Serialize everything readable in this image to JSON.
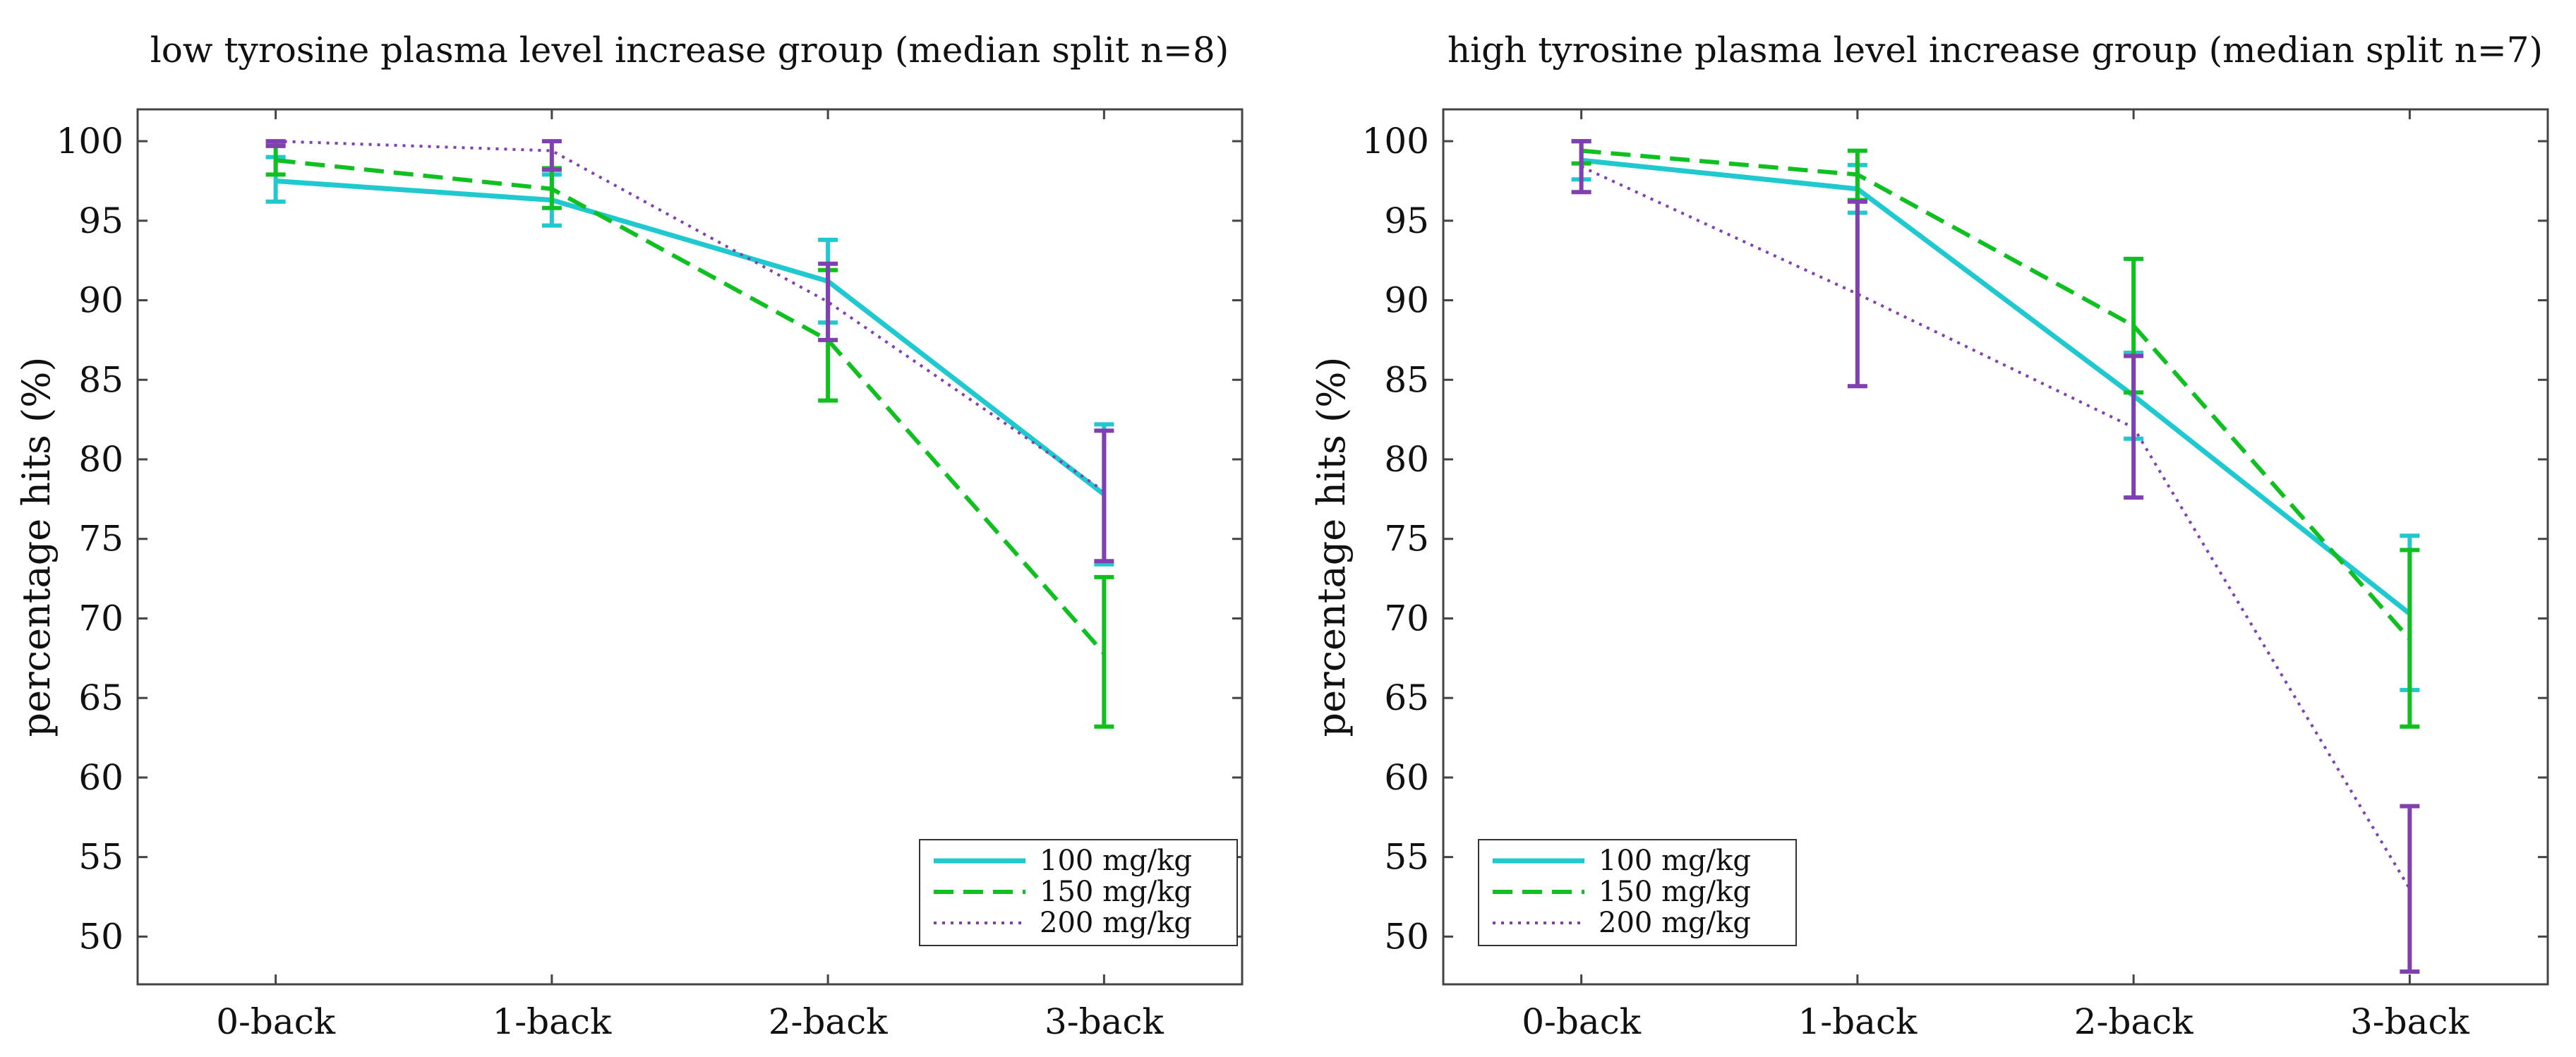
{
  "colors": {
    "100 mg/kg": "#20c8d0",
    "150 mg/kg": "#10c020",
    "200 mg/kg": "#8040b0",
    "axis": "#444444",
    "text": "#111111"
  },
  "chart_data": [
    {
      "type": "line",
      "title": "low tyrosine plasma level increase group (median split n=8)",
      "xlabel": "",
      "ylabel": "percentage hits (%)",
      "categories": [
        "0-back",
        "1-back",
        "2-back",
        "3-back"
      ],
      "ylim": [
        47,
        102
      ],
      "yticks": [
        50,
        55,
        60,
        65,
        70,
        75,
        80,
        85,
        90,
        95,
        100
      ],
      "legend_position": "bottom-right",
      "series": [
        {
          "name": "100 mg/kg",
          "style": "solid",
          "color_key": "100 mg/kg",
          "values": [
            97.5,
            96.3,
            91.2,
            77.8
          ],
          "error_low": [
            96.2,
            94.7,
            88.6,
            73.4
          ],
          "error_high": [
            99.0,
            97.9,
            93.8,
            82.2
          ]
        },
        {
          "name": "150 mg/kg",
          "style": "dashed",
          "color_key": "150 mg/kg",
          "values": [
            98.8,
            97.0,
            87.5,
            67.8
          ],
          "error_low": [
            97.9,
            95.8,
            83.7,
            63.2
          ],
          "error_high": [
            99.8,
            98.3,
            91.9,
            72.6
          ]
        },
        {
          "name": "200 mg/kg",
          "style": "dotted",
          "color_key": "200 mg/kg",
          "values": [
            100.0,
            99.4,
            89.9,
            78.0
          ],
          "error_low": [
            99.7,
            98.2,
            87.5,
            73.6
          ],
          "error_high": [
            100.0,
            100.0,
            92.3,
            81.8
          ]
        }
      ]
    },
    {
      "type": "line",
      "title": "high tyrosine plasma level increase group  (median split n=7)",
      "xlabel": "",
      "ylabel": "percentage hits (%)",
      "categories": [
        "0-back",
        "1-back",
        "2-back",
        "3-back"
      ],
      "ylim": [
        47,
        102
      ],
      "yticks": [
        50,
        55,
        60,
        65,
        70,
        75,
        80,
        85,
        90,
        95,
        100
      ],
      "legend_position": "bottom-left",
      "series": [
        {
          "name": "100 mg/kg",
          "style": "solid",
          "color_key": "100 mg/kg",
          "values": [
            98.8,
            97.0,
            84.0,
            70.3
          ],
          "error_low": [
            97.6,
            95.5,
            81.3,
            65.5
          ],
          "error_high": [
            100.0,
            98.5,
            86.7,
            75.2
          ]
        },
        {
          "name": "150 mg/kg",
          "style": "dashed",
          "color_key": "150 mg/kg",
          "values": [
            99.4,
            97.9,
            88.4,
            68.7
          ],
          "error_low": [
            98.6,
            96.3,
            84.2,
            63.2
          ],
          "error_high": [
            100.0,
            99.4,
            92.6,
            74.3
          ]
        },
        {
          "name": "200 mg/kg",
          "style": "dotted",
          "color_key": "200 mg/kg",
          "values": [
            98.4,
            90.4,
            82.0,
            53.0
          ],
          "error_low": [
            96.8,
            84.6,
            77.6,
            47.8
          ],
          "error_high": [
            100.0,
            96.2,
            86.5,
            58.2
          ]
        }
      ]
    }
  ]
}
